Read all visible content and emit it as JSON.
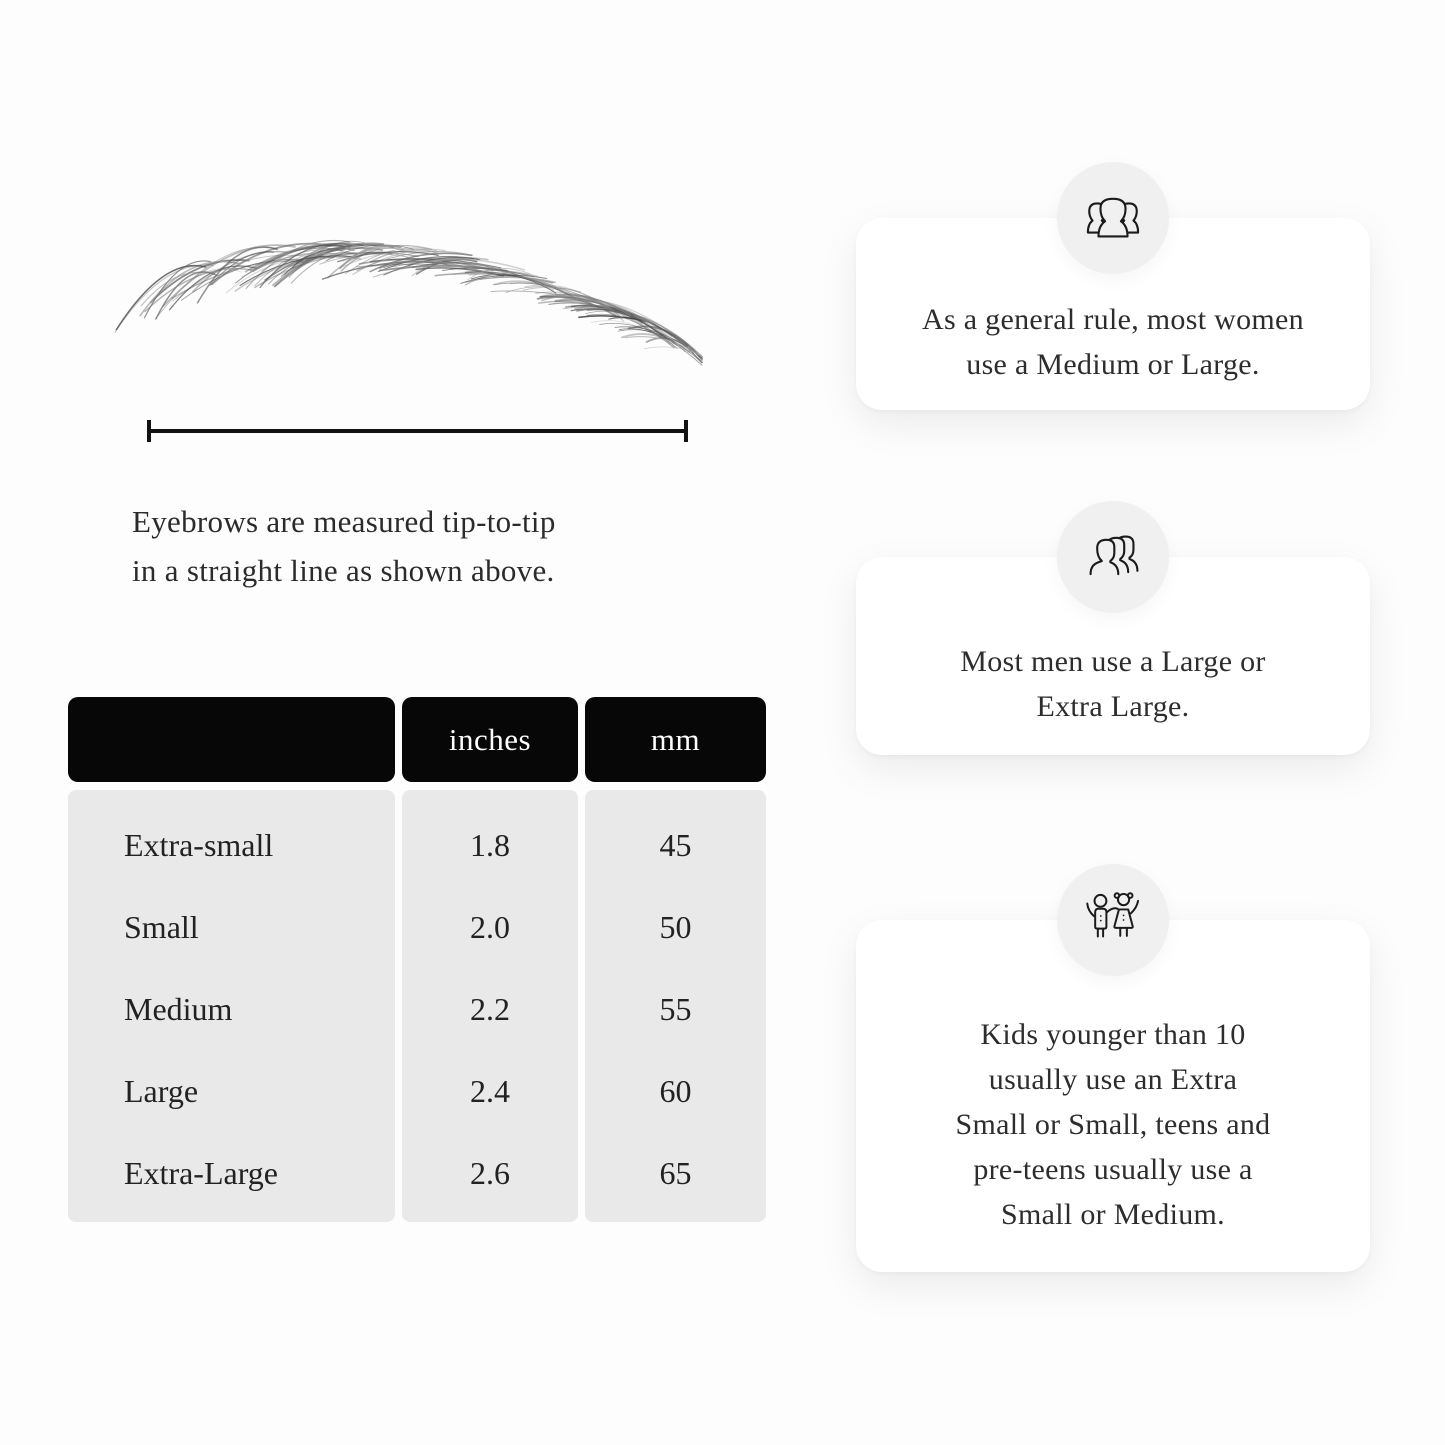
{
  "colors": {
    "page_bg": "#fdfdfd",
    "table_header_bg": "#070707",
    "table_header_text": "#ffffff",
    "table_body_bg": "#e9e9e9",
    "card_bg": "#ffffff",
    "icon_circle_bg": "#f0f0f0",
    "ruler": "#121212",
    "text": "#2d2d2d"
  },
  "measurement": {
    "illustration": "eyebrow-sketch",
    "ruler": "tip-to-tip measurement line",
    "caption": "Eyebrows are measured tip-to-tip\nin a straight line as shown above."
  },
  "size_table": {
    "headers": {
      "size": "",
      "inches": "inches",
      "mm": "mm"
    },
    "rows": [
      {
        "size": "Extra-small",
        "inches": "1.8",
        "mm": "45"
      },
      {
        "size": "Small",
        "inches": "2.0",
        "mm": "50"
      },
      {
        "size": "Medium",
        "inches": "2.2",
        "mm": "55"
      },
      {
        "size": "Large",
        "inches": "2.4",
        "mm": "60"
      },
      {
        "size": "Extra-Large",
        "inches": "2.6",
        "mm": "65"
      }
    ]
  },
  "info_cards": [
    {
      "icon": "women-group-icon",
      "text": "As a general rule, most women\nuse a Medium or Large."
    },
    {
      "icon": "men-group-icon",
      "text": "Most men use a Large or\nExtra Large."
    },
    {
      "icon": "kids-icon",
      "text": "Kids younger than 10\nusually use an Extra\nSmall or Small, teens and\npre-teens usually use a\nSmall or Medium."
    }
  ]
}
